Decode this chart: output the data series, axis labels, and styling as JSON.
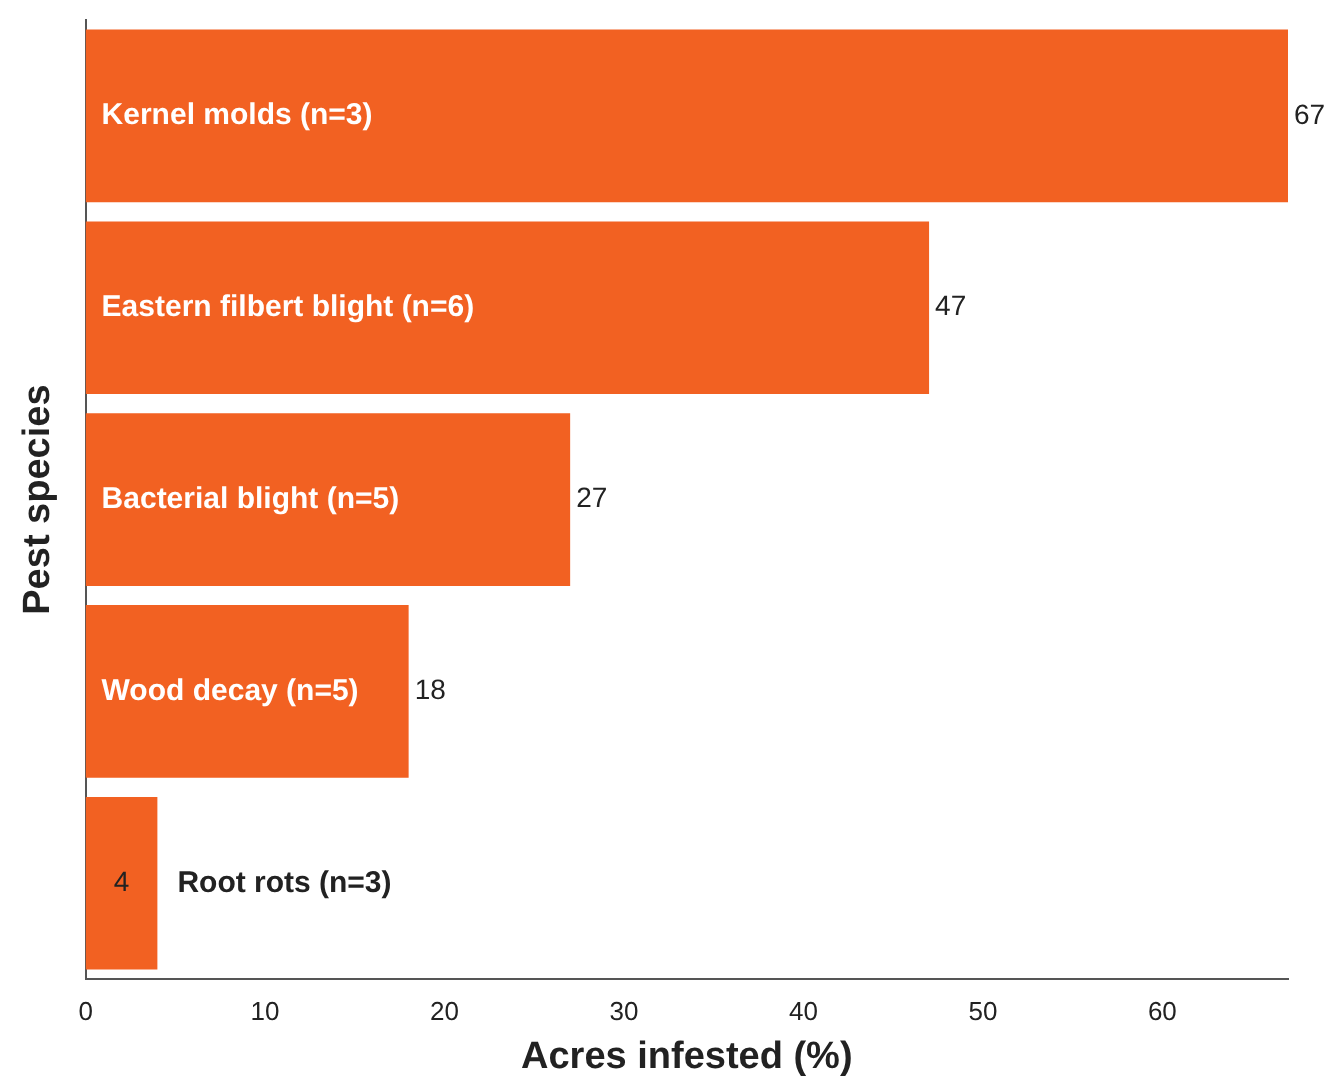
{
  "chart_data": {
    "type": "bar",
    "orientation": "horizontal",
    "xlabel": "Acres infested (%)",
    "ylabel": "Pest species",
    "categories": [
      "Kernel molds (n=3)",
      "Eastern filbert blight (n=6)",
      "Bacterial blight (n=5)",
      "Wood decay (n=5)",
      "Root rots (n=3)"
    ],
    "values": [
      67,
      47,
      27,
      18,
      4
    ],
    "color": "#f26122",
    "data_labels": true,
    "grid": false,
    "xlim": [
      0,
      67
    ],
    "xticks": [
      0,
      10,
      20,
      30,
      40,
      50,
      60
    ]
  }
}
